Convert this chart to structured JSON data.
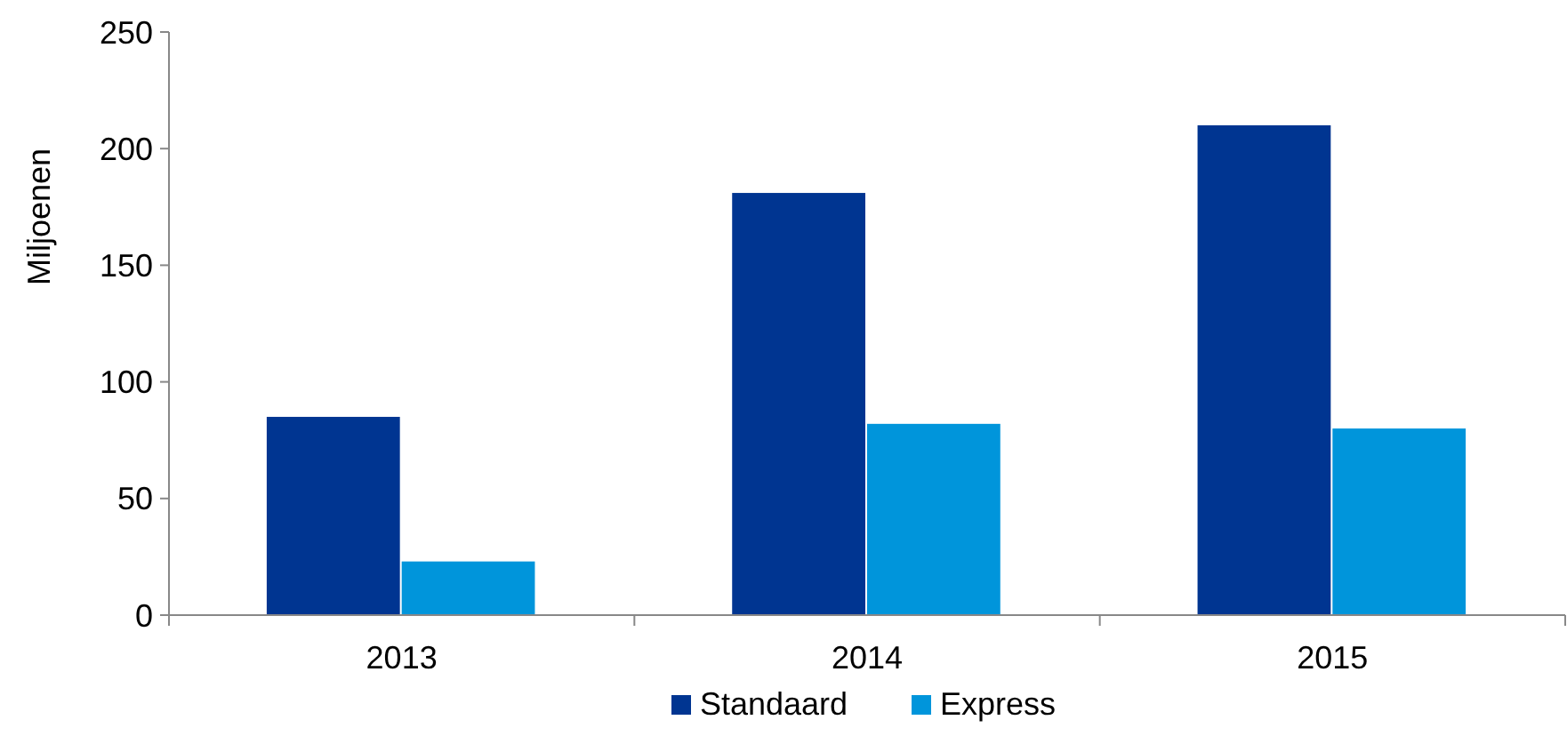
{
  "chart_data": {
    "type": "bar",
    "ylabel": "Miljoenen",
    "categories": [
      "2013",
      "2014",
      "2015"
    ],
    "series": [
      {
        "name": "Standaard",
        "color": "#003591",
        "values": [
          85,
          181,
          210
        ]
      },
      {
        "name": "Express",
        "color": "#0095db",
        "values": [
          23,
          82,
          80
        ]
      }
    ],
    "ylim": [
      0,
      250
    ],
    "yticks": [
      0,
      50,
      100,
      150,
      200,
      250
    ],
    "grid": false,
    "legend": "bottom"
  }
}
